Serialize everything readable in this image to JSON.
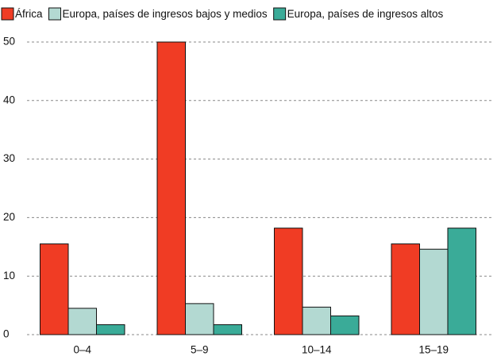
{
  "chart_data": {
    "type": "bar",
    "categories": [
      "0–4",
      "5–9",
      "10–14",
      "15–19"
    ],
    "series": [
      {
        "name": "África",
        "color": "#f03c24",
        "values": [
          15.5,
          50,
          18.2,
          15.5
        ]
      },
      {
        "name": "Europa, países de ingresos bajos y medios",
        "color": "#b3d9d2",
        "values": [
          4.5,
          5.3,
          4.7,
          14.6
        ]
      },
      {
        "name": "Europa, países de ingresos altos",
        "color": "#3aab98",
        "values": [
          1.7,
          1.7,
          3.2,
          18.2
        ]
      }
    ],
    "ylim": [
      0,
      50
    ],
    "yticks": [
      0,
      10,
      20,
      30,
      40,
      50
    ],
    "grid": true,
    "legend": "top"
  }
}
